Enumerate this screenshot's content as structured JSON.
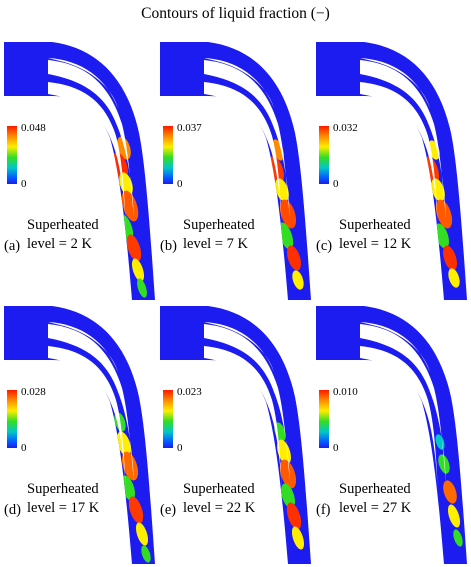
{
  "figure_title": "Contours of liquid fraction (−)",
  "colorbar_colors": [
    "#ff1a00",
    "#ff8c00",
    "#ffee00",
    "#33dd22",
    "#00c8c8",
    "#0060ff",
    "#1c1cf0"
  ],
  "panels": [
    {
      "letter": "(a)",
      "line1": "Superheated",
      "line2": "level = 2 K",
      "max_label": "0.048",
      "min_label": "0"
    },
    {
      "letter": "(b)",
      "line1": "Superheated",
      "line2": "level = 7 K",
      "max_label": "0.037",
      "min_label": "0"
    },
    {
      "letter": "(c)",
      "line1": "Superheated",
      "line2": "level = 12 K",
      "max_label": "0.032",
      "min_label": "0"
    },
    {
      "letter": "(d)",
      "line1": "Superheated",
      "line2": "level = 17 K",
      "max_label": "0.028",
      "min_label": "0"
    },
    {
      "letter": "(e)",
      "line1": "Superheated",
      "line2": "level = 22 K",
      "max_label": "0.023",
      "min_label": "0"
    },
    {
      "letter": "(f)",
      "line1": "Superheated",
      "line2": "level = 27 K",
      "max_label": "0.010",
      "min_label": "0"
    }
  ]
}
